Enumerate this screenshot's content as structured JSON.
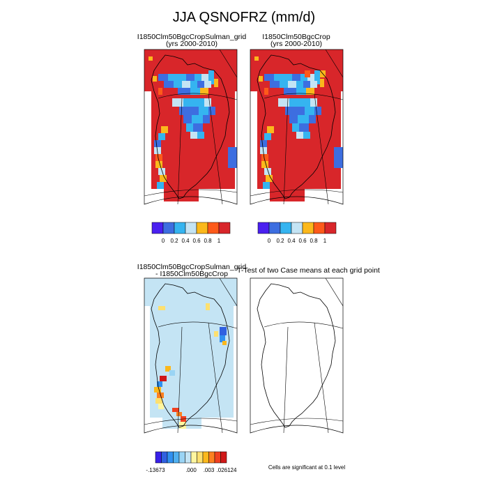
{
  "figure": {
    "title": "JJA QSNOFRZ (mm/d)",
    "panel_a_title": "I1850Clm50BgcCropSulman_grid",
    "panel_a_sub": "(yrs 2000-2010)",
    "panel_b_title": "I1850Clm50BgcCrop",
    "panel_b_sub": "(yrs 2000-2010)",
    "panel_c_title": "I1850Clm50BgcCropSulman_grid",
    "panel_c_sub": "- I1850Clm50BgcCrop",
    "panel_d_title": "T-Test of two Case means at each grid point",
    "signif_note": "Cells are significant at 0.1 level"
  },
  "colors": {
    "scale_a": [
      "#4a20f0",
      "#3d6ee0",
      "#35b4f0",
      "#c4e4f4",
      "#fbb81c",
      "#fd5a1a",
      "#d8262a"
    ],
    "scale_diff": [
      "#3820e8",
      "#3060e0",
      "#3090f0",
      "#50b0f0",
      "#9ad4f4",
      "#c4e4f4",
      "#fff6a0",
      "#fde070",
      "#fbb81c",
      "#fd8020",
      "#f04020",
      "#d01818"
    ],
    "coast": "#000000"
  },
  "chart_data": [
    {
      "type": "heatmap",
      "title": "I1850Clm50BgcCropSulman_grid",
      "subtitle": "(yrs 2000-2010)",
      "colorbar_ticks": [
        "0",
        "0.2",
        "0.4",
        "0.6",
        "0.8",
        "1"
      ],
      "note": "Most of Greenland coastal margin ~1 mm/d (red); interior and north band 0-0.4 (blue)"
    },
    {
      "type": "heatmap",
      "title": "I1850Clm50BgcCrop",
      "subtitle": "(yrs 2000-2010)",
      "colorbar_ticks": [
        "0",
        "0.2",
        "0.4",
        "0.6",
        "0.8",
        "1"
      ]
    },
    {
      "type": "heatmap",
      "title": "I1850Clm50BgcCropSulman_grid",
      "subtitle": "- I1850Clm50BgcCrop",
      "colorbar_ticks": [
        "-.13673",
        ".000",
        ".003",
        ".026124"
      ],
      "min": -0.13673,
      "max": 0.026124
    },
    {
      "type": "heatmap",
      "title": "T-Test of two Case means at each grid point",
      "note": "Cells are significant at 0.1 level"
    }
  ]
}
